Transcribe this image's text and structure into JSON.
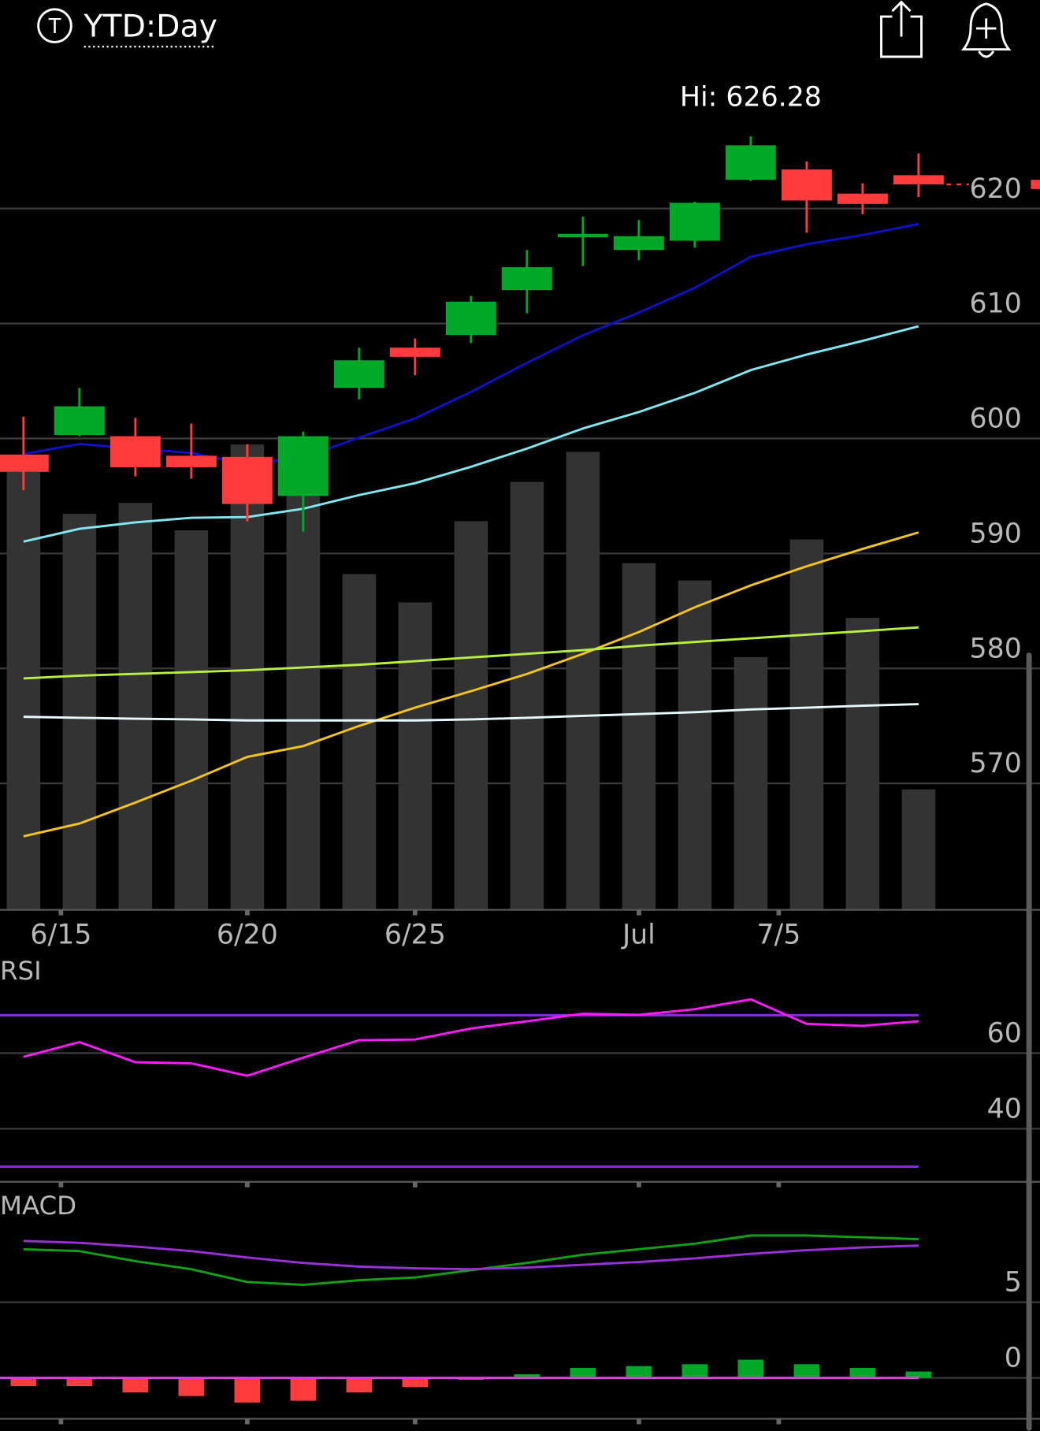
{
  "header": {
    "icon_label": "T",
    "title": "YTD:Day"
  },
  "chart_data": [
    {
      "type": "candlestick",
      "annotation": "Hi: 626.28",
      "x": [
        0,
        1,
        2,
        3,
        4,
        5,
        6,
        7,
        8,
        9,
        10,
        11,
        12,
        13,
        14,
        15,
        16
      ],
      "open": [
        598.6,
        600.3,
        600.2,
        598.5,
        598.4,
        595.0,
        604.4,
        607.9,
        609.0,
        612.9,
        617.5,
        616.4,
        617.2,
        622.5,
        623.4,
        621.3,
        622.9
      ],
      "high": [
        601.9,
        604.4,
        601.8,
        601.3,
        599.5,
        600.6,
        607.9,
        608.7,
        612.4,
        616.4,
        619.3,
        619.0,
        620.6,
        626.28,
        624.1,
        622.2,
        624.8
      ],
      "low": [
        595.5,
        600.2,
        596.7,
        596.5,
        592.8,
        591.9,
        603.4,
        605.5,
        608.3,
        610.9,
        615.0,
        615.5,
        616.6,
        622.4,
        617.9,
        619.5,
        621.0
      ],
      "close": [
        597.1,
        602.8,
        597.5,
        597.5,
        594.3,
        600.2,
        606.8,
        607.1,
        611.9,
        614.9,
        617.8,
        617.6,
        620.5,
        625.5,
        620.7,
        620.4,
        622.1
      ],
      "up_color": "#00a828",
      "down_color": "#ff3b3b",
      "volume": {
        "axis": "y2",
        "color": "#333333",
        "values": [
          497,
          434,
          446,
          416,
          510,
          517,
          368,
          337,
          426,
          469,
          502,
          380,
          361,
          277,
          406,
          320,
          132
        ]
      },
      "series": [
        {
          "color": "#1010c8",
          "values": [
            598.65,
            599.52,
            599.13,
            598.73,
            597.78,
            598.33,
            600.08,
            601.75,
            604.05,
            606.59,
            608.97,
            610.95,
            613.1,
            615.79,
            616.9,
            617.7,
            618.65
          ]
        },
        {
          "color": "#7fe8f0",
          "values": [
            591.03,
            592.14,
            592.7,
            593.1,
            593.17,
            593.89,
            595.08,
            596.11,
            597.54,
            599.13,
            600.87,
            602.3,
            603.97,
            605.95,
            607.3,
            608.49,
            609.76
          ]
        },
        {
          "color": "#f5c518",
          "values": [
            565.4,
            566.51,
            568.33,
            570.24,
            572.3,
            573.25,
            575.0,
            576.59,
            578.02,
            579.52,
            581.27,
            583.17,
            585.32,
            587.22,
            588.89,
            590.4,
            591.83
          ]
        },
        {
          "color": "#b8f040",
          "values": [
            579.13,
            579.37,
            579.52,
            579.68,
            579.84,
            580.08,
            580.32,
            580.63,
            580.95,
            581.27,
            581.59,
            581.98,
            582.3,
            582.62,
            582.94,
            583.25,
            583.57
          ]
        },
        {
          "color": "#e8f8ff",
          "values": [
            575.79,
            575.71,
            575.63,
            575.56,
            575.48,
            575.48,
            575.48,
            575.48,
            575.56,
            575.71,
            575.87,
            576.03,
            576.19,
            576.43,
            576.59,
            576.75,
            576.9
          ]
        }
      ],
      "xlim": [
        -0.42,
        18.17
      ],
      "xticks": [
        {
          "value": 0.67,
          "label": "6/15"
        },
        {
          "value": 4,
          "label": "6/20"
        },
        {
          "value": 7,
          "label": "6/25"
        },
        {
          "value": 11,
          "label": "Jul"
        },
        {
          "value": 13.5,
          "label": "7/5"
        }
      ],
      "ylim": [
        559,
        631
      ],
      "yticks": [
        570,
        580,
        590,
        600,
        610,
        620
      ],
      "y2lim": [
        0,
        600
      ],
      "grid": true
    },
    {
      "type": "line",
      "title": "RSI",
      "ylim": [
        26,
        78
      ],
      "yticks": [
        40,
        60
      ],
      "levels": [
        30,
        70
      ],
      "level_color": "#8a2be2",
      "series": [
        {
          "color": "#ff1aff",
          "values": [
            59.0,
            62.9,
            57.6,
            57.3,
            54.0,
            58.8,
            63.4,
            63.6,
            66.5,
            68.4,
            70.4,
            70.1,
            71.6,
            74.2,
            67.7,
            67.2,
            68.4
          ]
        }
      ],
      "grid": true
    },
    {
      "type": "macd",
      "title": "MACD",
      "ylim": [
        -2.7,
        12.6
      ],
      "yticks": [
        0,
        5
      ],
      "zero_color": "#e040e0",
      "series": [
        {
          "color": "#14a014",
          "values": [
            8.49,
            8.37,
            7.71,
            7.17,
            6.33,
            6.14,
            6.45,
            6.63,
            7.11,
            7.59,
            8.13,
            8.49,
            8.86,
            9.4,
            9.4,
            9.28,
            9.16
          ]
        },
        {
          "color": "#9a30d8",
          "values": [
            9.04,
            8.92,
            8.67,
            8.37,
            7.95,
            7.59,
            7.35,
            7.23,
            7.17,
            7.29,
            7.47,
            7.65,
            7.89,
            8.19,
            8.43,
            8.61,
            8.73
          ]
        }
      ],
      "histogram": {
        "up_color": "#00a828",
        "down_color": "#ff3b3b",
        "values": [
          -0.54,
          -0.54,
          -0.96,
          -1.2,
          -1.63,
          -1.51,
          -0.96,
          -0.6,
          -0.12,
          0.24,
          0.66,
          0.78,
          0.9,
          1.2,
          0.9,
          0.66,
          0.42
        ]
      },
      "grid": true
    }
  ]
}
